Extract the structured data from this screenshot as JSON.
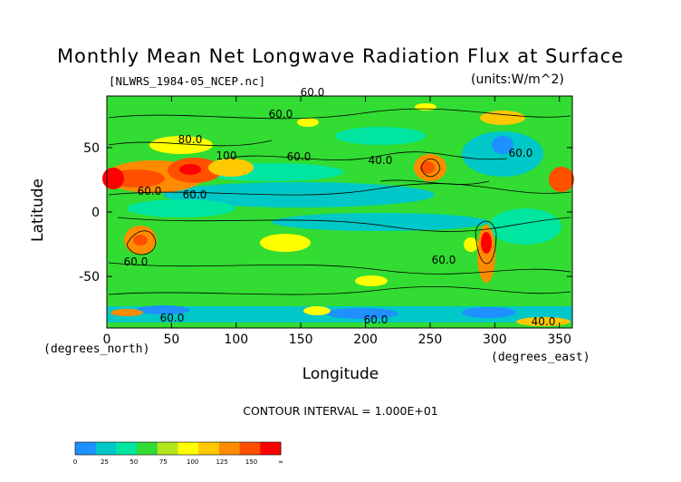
{
  "figure": {
    "title": "Monthly Mean Net Longwave Radiation Flux at Surface",
    "file_label": "[NLWRS_1984-05_NCEP.nc]",
    "units_label": "(units:W/m^2)",
    "x_axis_label": "Longitude",
    "y_axis_label": "Latitude",
    "x_unit_left": "(degrees_north)",
    "x_unit_right": "(degrees_east)",
    "contour_interval_text": "CONTOUR INTERVAL = 1.000E+01"
  },
  "axes": {
    "x_ticks": [
      "0",
      "50",
      "100",
      "150",
      "200",
      "250",
      "300",
      "350"
    ],
    "y_ticks": [
      "50",
      "0",
      "-50"
    ]
  },
  "contour_labels": [
    "60.0",
    "60.0",
    "80.0",
    "60.0",
    "100",
    "60.0",
    "40.0",
    "60.0",
    "60.0",
    "60.0",
    "40.0",
    "60.0",
    "60.0",
    "60.0"
  ],
  "colorbar": {
    "colors": [
      "#1e90ff",
      "#00c8c8",
      "#00e6a0",
      "#32dc32",
      "#b4e61e",
      "#ffff00",
      "#ffc800",
      "#ff8c00",
      "#ff5000",
      "#ff0000"
    ],
    "tick_labels": [
      "0",
      "25",
      "50",
      "75",
      "100",
      "125",
      "150",
      "∞"
    ]
  }
}
